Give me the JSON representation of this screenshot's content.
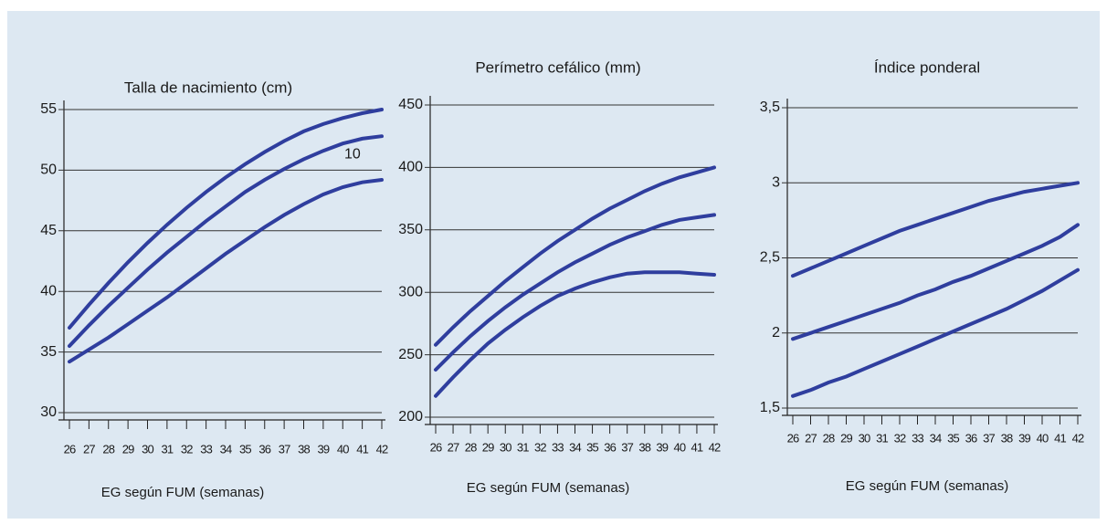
{
  "chart_data": [
    {
      "type": "line",
      "title": "Talla de nacimiento (cm)",
      "x_label": "EG según FUM (semanas)",
      "x": [
        26,
        27,
        28,
        29,
        30,
        31,
        32,
        33,
        34,
        35,
        36,
        37,
        38,
        39,
        40,
        41,
        42
      ],
      "xlim": [
        26,
        42
      ],
      "xticks": [
        26,
        27,
        28,
        29,
        30,
        31,
        32,
        33,
        34,
        35,
        36,
        37,
        38,
        39,
        40,
        41,
        42
      ],
      "ylim": [
        30,
        55
      ],
      "yticks": [
        30,
        35,
        40,
        45,
        50,
        55
      ],
      "grid": true,
      "series": [
        {
          "color": "#2f3e9e",
          "values": [
            37,
            38.9,
            40.7,
            42.4,
            44,
            45.5,
            46.9,
            48.2,
            49.4,
            50.5,
            51.5,
            52.4,
            53.2,
            53.8,
            54.3,
            54.7,
            55
          ]
        },
        {
          "color": "#2f3e9e",
          "values": [
            35.5,
            37.2,
            38.8,
            40.3,
            41.8,
            43.2,
            44.5,
            45.8,
            47,
            48.2,
            49.2,
            50.1,
            50.9,
            51.6,
            52.2,
            52.6,
            52.8
          ]
        },
        {
          "color": "#2f3e9e",
          "values": [
            34.2,
            35.2,
            36.2,
            37.3,
            38.4,
            39.5,
            40.7,
            41.9,
            43.1,
            44.2,
            45.3,
            46.3,
            47.2,
            48,
            48.6,
            49,
            49.2
          ]
        }
      ],
      "annotations": [
        {
          "text": "10",
          "x": 40.5,
          "y": 51.3
        }
      ]
    },
    {
      "type": "line",
      "title": "Perímetro cefálico (mm)",
      "x_label": "EG según FUM (semanas)",
      "x": [
        26,
        27,
        28,
        29,
        30,
        31,
        32,
        33,
        34,
        35,
        36,
        37,
        38,
        39,
        40,
        41,
        42
      ],
      "xlim": [
        26,
        42
      ],
      "xticks": [
        26,
        27,
        28,
        29,
        30,
        31,
        32,
        33,
        34,
        35,
        36,
        37,
        38,
        39,
        40,
        41,
        42
      ],
      "ylim": [
        200,
        450
      ],
      "yticks": [
        200,
        250,
        300,
        350,
        400,
        450
      ],
      "grid": true,
      "series": [
        {
          "color": "#2f3e9e",
          "values": [
            258,
            272,
            285,
            297,
            309,
            320,
            331,
            341,
            350,
            359,
            367,
            374,
            381,
            387,
            392,
            396,
            400
          ]
        },
        {
          "color": "#2f3e9e",
          "values": [
            238,
            252,
            265,
            277,
            288,
            298,
            307,
            316,
            324,
            331,
            338,
            344,
            349,
            354,
            358,
            360,
            362
          ]
        },
        {
          "color": "#2f3e9e",
          "values": [
            217,
            232,
            246,
            259,
            270,
            280,
            289,
            297,
            303,
            308,
            312,
            315,
            316,
            316,
            316,
            315,
            314
          ]
        }
      ]
    },
    {
      "type": "line",
      "title": "Índice ponderal",
      "x_label": "EG según FUM (semanas)",
      "x": [
        26,
        27,
        28,
        29,
        30,
        31,
        32,
        33,
        34,
        35,
        36,
        37,
        38,
        39,
        40,
        41,
        42
      ],
      "xlim": [
        26,
        42
      ],
      "xticks": [
        26,
        27,
        28,
        29,
        30,
        31,
        32,
        33,
        34,
        35,
        36,
        37,
        38,
        39,
        40,
        41,
        42
      ],
      "ylim": [
        1.5,
        3.5
      ],
      "yticks": [
        {
          "value": 1.5,
          "label": "1,5"
        },
        2,
        {
          "value": 2.5,
          "label": "2,5"
        },
        3,
        {
          "value": 3.5,
          "label": "3,5"
        }
      ],
      "grid": true,
      "series": [
        {
          "color": "#2f3e9e",
          "values": [
            2.38,
            2.43,
            2.48,
            2.53,
            2.58,
            2.63,
            2.68,
            2.72,
            2.76,
            2.8,
            2.84,
            2.88,
            2.91,
            2.94,
            2.96,
            2.98,
            3.0
          ]
        },
        {
          "color": "#2f3e9e",
          "values": [
            1.96,
            2.0,
            2.04,
            2.08,
            2.12,
            2.16,
            2.2,
            2.25,
            2.29,
            2.34,
            2.38,
            2.43,
            2.48,
            2.53,
            2.58,
            2.64,
            2.72
          ]
        },
        {
          "color": "#2f3e9e",
          "values": [
            1.58,
            1.62,
            1.67,
            1.71,
            1.76,
            1.81,
            1.86,
            1.91,
            1.96,
            2.01,
            2.06,
            2.11,
            2.16,
            2.22,
            2.28,
            2.35,
            2.42
          ]
        }
      ]
    }
  ]
}
